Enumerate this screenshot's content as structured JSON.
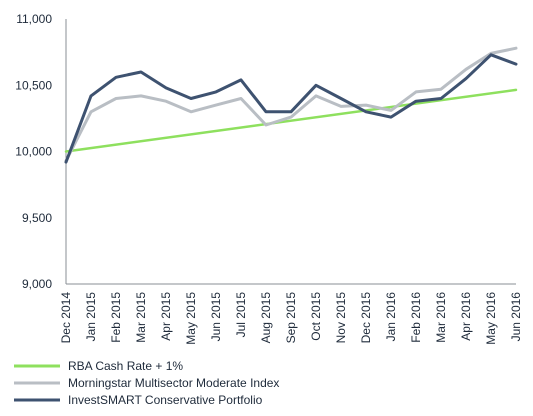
{
  "chart_data": {
    "type": "line",
    "title": "",
    "xlabel": "",
    "ylabel": "",
    "ylim": [
      9000,
      11000
    ],
    "y_ticks": [
      9000,
      9500,
      10000,
      10500,
      11000
    ],
    "y_tick_labels": [
      "9,000",
      "9,500",
      "10,000",
      "10,500",
      "11,000"
    ],
    "x_range": [
      "2014-12",
      "2016-06"
    ],
    "x_ticks": [
      "Dec 2014",
      "Jan 2015",
      "Feb 2015",
      "Mar 2015",
      "Apr 2015",
      "May 2015",
      "Jun 2015",
      "Jul 2015",
      "Aug 2015",
      "Sep 2015",
      "Oct 2015",
      "Nov 2015",
      "Dec 2015",
      "Jan 2016",
      "Feb 2016",
      "Mar 2016",
      "Apr 2016",
      "May 2016",
      "Jun 2016"
    ],
    "grid": false,
    "legend_position": "bottom",
    "series": [
      {
        "name": "RBA Cash Rate + 1%",
        "color": "#8ee05e",
        "x": [
          "Dec 2014",
          "Jun 2016"
        ],
        "values": [
          10000,
          10465
        ]
      },
      {
        "name": "Morningstar Multisector Moderate Index",
        "color": "#b9bec4",
        "x": [
          "Dec 2014",
          "Jan 2015",
          "Feb 2015",
          "Mar 2015",
          "Apr 2015",
          "May 2015",
          "Jun 2015",
          "Jul 2015",
          "Aug 2015",
          "Sep 2015",
          "Oct 2015",
          "Nov 2015",
          "Dec 2015",
          "Jan 2016",
          "Feb 2016",
          "Mar 2016",
          "Apr 2016",
          "May 2016",
          "Jun 2016"
        ],
        "values": [
          9930,
          10300,
          10400,
          10420,
          10380,
          10300,
          10350,
          10400,
          10200,
          10260,
          10420,
          10340,
          10350,
          10310,
          10450,
          10470,
          10620,
          10740,
          10780
        ]
      },
      {
        "name": "InvestSMART Conservative Portfolio",
        "color": "#3e5270",
        "x": [
          "Dec 2014",
          "Jan 2015",
          "Feb 2015",
          "Mar 2015",
          "Apr 2015",
          "May 2015",
          "Jun 2015",
          "Jul 2015",
          "Aug 2015",
          "Sep 2015",
          "Oct 2015",
          "Nov 2015",
          "Dec 2015",
          "Jan 2016",
          "Feb 2016",
          "Mar 2016",
          "Apr 2016",
          "May 2016",
          "Jun 2016"
        ],
        "values": [
          9920,
          10420,
          10560,
          10600,
          10480,
          10400,
          10450,
          10540,
          10300,
          10300,
          10500,
          10400,
          10300,
          10260,
          10380,
          10400,
          10550,
          10730,
          10660
        ]
      }
    ]
  }
}
